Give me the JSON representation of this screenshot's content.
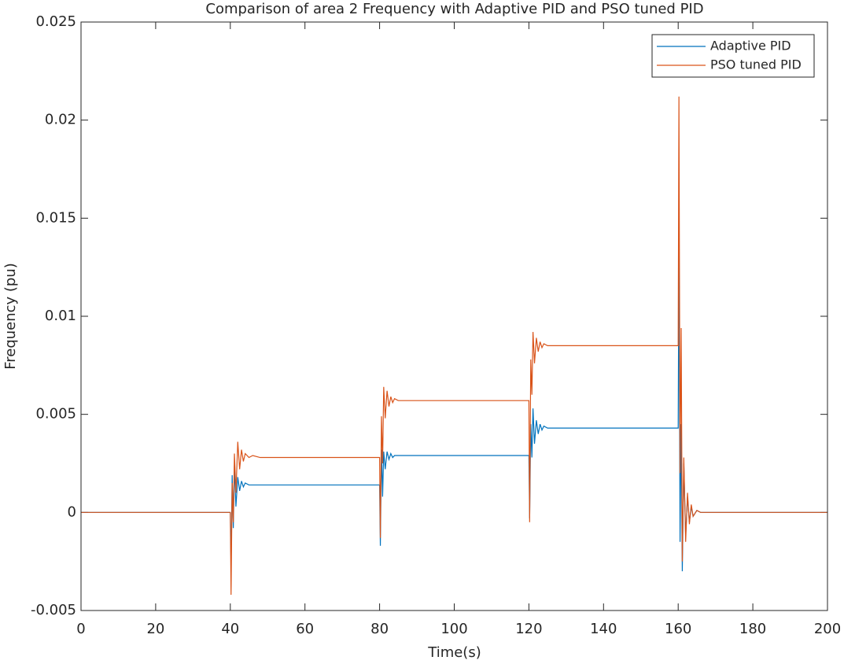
{
  "chart_data": {
    "type": "line",
    "title": "Comparison of area 2 Frequency with Adaptive PID and PSO tuned PID",
    "x_label": "Time(s)",
    "y_label": "Frequency (pu)",
    "x": [
      0,
      40,
      40.2,
      40.5,
      40.8,
      41.1,
      41.5,
      42,
      42.5,
      43,
      43.5,
      44,
      45,
      46,
      48,
      50,
      80,
      80.2,
      80.5,
      80.8,
      81.1,
      81.5,
      82,
      82.5,
      83,
      83.5,
      84,
      85,
      86,
      88,
      90,
      120,
      120.2,
      120.5,
      120.8,
      121.1,
      121.5,
      122,
      122.5,
      123,
      123.5,
      124,
      125,
      126,
      128,
      130,
      160,
      160.2,
      160.5,
      160.8,
      161.1,
      161.5,
      162,
      162.5,
      163,
      163.5,
      164,
      165,
      166,
      168,
      170,
      200
    ],
    "series": [
      {
        "name": "Adaptive PID",
        "color": "#0072bd",
        "values": [
          0,
          0,
          -0.0027,
          0.0019,
          -0.0008,
          0.0024,
          0.0003,
          0.0018,
          0.0011,
          0.0016,
          0.0013,
          0.0015,
          0.0014,
          0.0014,
          0.0014,
          0.0014,
          0.0014,
          -0.0017,
          0.0032,
          0.0008,
          0.0031,
          0.0022,
          0.0031,
          0.0027,
          0.003,
          0.0028,
          0.0029,
          0.0029,
          0.0029,
          0.0029,
          0.0029,
          0.0029,
          -0.0003,
          0.0045,
          0.0028,
          0.0053,
          0.0035,
          0.0047,
          0.004,
          0.0045,
          0.0042,
          0.0044,
          0.0043,
          0.0043,
          0.0043,
          0.0043,
          0.0043,
          0.0138,
          -0.0015,
          0.0045,
          -0.003,
          0.0025,
          -0.0012,
          0.0008,
          -0.0005,
          0.0003,
          -0.0002,
          0.0001,
          0,
          0,
          0,
          0
        ]
      },
      {
        "name": "PSO tuned PID",
        "color": "#d95319",
        "values": [
          0,
          0,
          -0.0042,
          0.0015,
          -0.0005,
          0.003,
          0.001,
          0.0036,
          0.0022,
          0.0032,
          0.0026,
          0.003,
          0.0028,
          0.0029,
          0.0028,
          0.0028,
          0.0028,
          -0.0013,
          0.0049,
          0.0025,
          0.0064,
          0.0048,
          0.0062,
          0.0054,
          0.0059,
          0.0056,
          0.0058,
          0.0057,
          0.0057,
          0.0057,
          0.0057,
          0.0057,
          -0.0005,
          0.0078,
          0.006,
          0.0092,
          0.0076,
          0.0089,
          0.0082,
          0.0087,
          0.0084,
          0.0086,
          0.0085,
          0.0085,
          0.0085,
          0.0085,
          0.0085,
          0.0212,
          0.002,
          0.0094,
          -0.0025,
          0.0028,
          -0.0015,
          0.001,
          -0.0006,
          0.0004,
          -0.0002,
          0.0001,
          0,
          0,
          0,
          0
        ]
      }
    ],
    "xlim": [
      0,
      200
    ],
    "xticks": [
      0,
      20,
      40,
      60,
      80,
      100,
      120,
      140,
      160,
      180,
      200
    ],
    "ylim": [
      -0.005,
      0.025
    ],
    "yticks": [
      -0.005,
      0,
      0.005,
      0.01,
      0.015,
      0.02,
      0.025
    ],
    "grid": false,
    "legend": "top-right"
  }
}
